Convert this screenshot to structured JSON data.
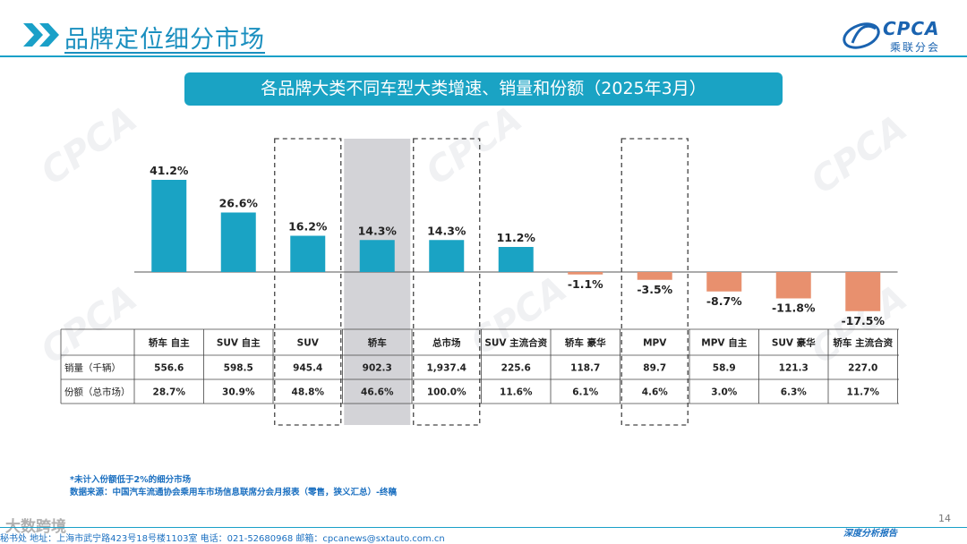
{
  "header": {
    "title": "品牌定位细分市场"
  },
  "logo": {
    "en": "CPCA",
    "cn": "乘联分会"
  },
  "banner": {
    "title": "各品牌大类不同车型大类增速、销量和份额（2025年3月）"
  },
  "colors": {
    "positive": "#1aa3c4",
    "negative": "#e8906e",
    "accent": "#1a8fbf",
    "highlight_column": "#d3d3d7"
  },
  "chart_data": {
    "type": "bar",
    "categories": [
      "轿车 自主",
      "SUV 自主",
      "SUV",
      "轿车",
      "总市场",
      "SUV 主流合资",
      "轿车 豪华",
      "MPV",
      "MPV 自主",
      "SUV 豪华",
      "轿车 主流合资"
    ],
    "values": [
      41.2,
      26.6,
      16.2,
      14.3,
      14.3,
      11.2,
      -1.1,
      -3.5,
      -8.7,
      -11.8,
      -17.5
    ],
    "value_labels": [
      "41.2%",
      "26.6%",
      "16.2%",
      "14.3%",
      "14.3%",
      "11.2%",
      "-1.1%",
      "-3.5%",
      "-8.7%",
      "-11.8%",
      "-17.5%"
    ],
    "dashed_box_categories": [
      "SUV",
      "总市场",
      "MPV"
    ],
    "shaded_category": "轿车",
    "table": {
      "row_labels": [
        "销量（千辆）",
        "份额（总市场）"
      ],
      "rows": [
        [
          "556.6",
          "598.5",
          "945.4",
          "902.3",
          "1,937.4",
          "225.6",
          "118.7",
          "89.7",
          "58.9",
          "121.3",
          "227.0"
        ],
        [
          "28.7%",
          "30.9%",
          "48.8%",
          "46.6%",
          "100.0%",
          "11.6%",
          "6.1%",
          "4.6%",
          "3.0%",
          "6.3%",
          "11.7%"
        ]
      ]
    }
  },
  "footnotes": {
    "note": "*未计入份额低于2%的细分市场",
    "source": "数据来源：中国汽车流通协会乘用车市场信息联席分会月报表（零售，狭义汇总）-终稿"
  },
  "footer": {
    "address": "秘书处  地址：上海市武宁路423号18号楼1103室  电话：021-52680968   邮箱：cpcanews@sxtauto.com.cn",
    "badge": "大数跨境",
    "page": "14",
    "report_tag": "深度分析报告"
  }
}
